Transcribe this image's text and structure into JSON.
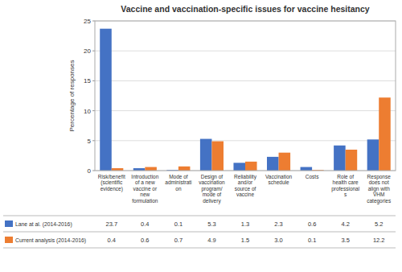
{
  "chart_data": {
    "type": "bar",
    "title": "Vaccine and vaccination-specific issues for vaccine hesitancy",
    "categories": [
      "Risk/benefit\n(scientific\nevidence)",
      "Introduction\nof a new\nvaccine or\nnew\nformulation",
      "Mode of\nadministrati\non",
      "Design of\nvaccination\nprogram/\nmode of\ndelivery",
      "Reliability\nand/or\nsource of\nvaccine",
      "Vaccination\nschedule",
      "Costs",
      "Role of\nhealth care\nprofessional\ns",
      "Response\ndoes not\nalign with\nVHM\ncategories"
    ],
    "series": [
      {
        "name": "Lane at al. (2014-2016)",
        "color": "#4472C4",
        "values": [
          23.7,
          0.4,
          0.1,
          5.3,
          1.3,
          2.3,
          0.6,
          4.2,
          5.2
        ],
        "value_labels": [
          "23.7",
          "0.4",
          "0.1",
          "5.3",
          "1.3",
          "2.3",
          "0.6",
          "4.2",
          "5.2"
        ]
      },
      {
        "name": "Current analysis (2014-2016)",
        "color": "#ED7D31",
        "values": [
          0.4,
          0.6,
          0.7,
          4.9,
          1.5,
          3.0,
          0.1,
          3.5,
          12.2
        ],
        "value_labels": [
          "0.4",
          "0.6",
          "0.7",
          "4.9",
          "1.5",
          "3.0",
          "0.1",
          "3.5",
          "12.2"
        ]
      }
    ],
    "ylabel": "Percentage of responses",
    "ylim": [
      0,
      25.0
    ],
    "yticks": [
      0,
      5,
      10,
      15,
      20,
      25
    ],
    "grid": true,
    "legend": "bottom",
    "data_labels": true
  }
}
